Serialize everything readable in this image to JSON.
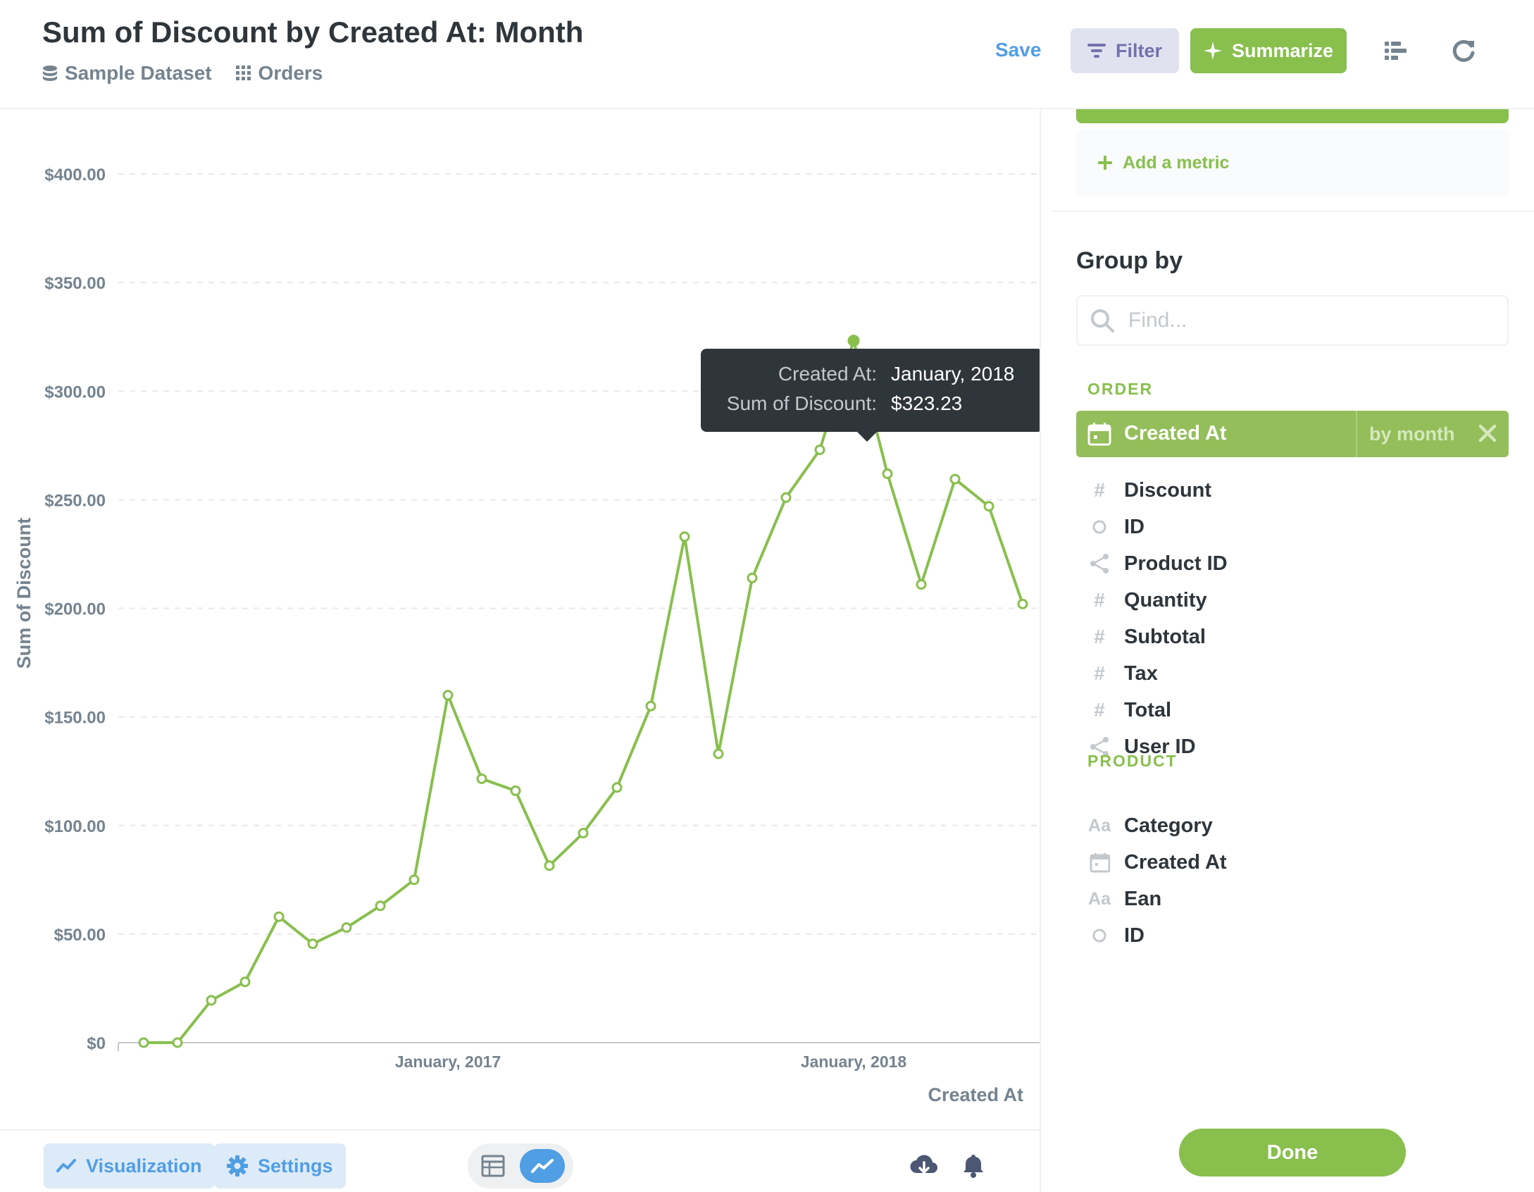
{
  "header": {
    "title": "Sum of Discount by Created At: Month",
    "database": "Sample Dataset",
    "table": "Orders",
    "save_label": "Save",
    "filter_label": "Filter",
    "summarize_label": "Summarize"
  },
  "tooltip": {
    "key1": "Created At:",
    "val1": "January, 2018",
    "key2": "Sum of Discount:",
    "val2": "$323.23"
  },
  "chart_data": {
    "type": "line",
    "title": "Sum of Discount by Created At: Month",
    "xlabel": "Created At",
    "ylabel": "Sum of Discount",
    "ylim": [
      0,
      400
    ],
    "y_ticks": [
      0,
      50,
      100,
      150,
      200,
      250,
      300,
      350,
      400
    ],
    "y_tick_labels": [
      "$0",
      "$50.00",
      "$100.00",
      "$150.00",
      "$200.00",
      "$250.00",
      "$300.00",
      "$350.00",
      "$400.00"
    ],
    "x_ticks": [
      {
        "index": 9,
        "label": "January, 2017"
      },
      {
        "index": 21,
        "label": "January, 2018"
      }
    ],
    "x_range": [
      -0.75,
      26.5
    ],
    "series": [
      {
        "name": "Sum of Discount",
        "color": "#88bf4d",
        "highlight_index": 21,
        "values": [
          0,
          0,
          19.5,
          28,
          58,
          45.5,
          53,
          63,
          75,
          160,
          121.5,
          116,
          81.5,
          96.5,
          117.5,
          155,
          233,
          133,
          214,
          251,
          273,
          323.23,
          262,
          211,
          259.5,
          247,
          202
        ]
      }
    ]
  },
  "footer": {
    "visualization_label": "Visualization",
    "settings_label": "Settings"
  },
  "sidebar": {
    "add_metric_label": "Add a metric",
    "group_by_title": "Group by",
    "find_placeholder": "Find...",
    "sections": [
      {
        "label": "ORDER"
      },
      {
        "label": "PRODUCT"
      }
    ],
    "selected": {
      "label": "Created At",
      "bucket": "by month"
    },
    "order_fields": [
      {
        "label": "Discount",
        "icon": "number-icon"
      },
      {
        "label": "ID",
        "icon": "id-icon"
      },
      {
        "label": "Product ID",
        "icon": "connections-icon"
      },
      {
        "label": "Quantity",
        "icon": "number-icon"
      },
      {
        "label": "Subtotal",
        "icon": "number-icon"
      },
      {
        "label": "Tax",
        "icon": "number-icon"
      },
      {
        "label": "Total",
        "icon": "number-icon"
      },
      {
        "label": "User ID",
        "icon": "connections-icon"
      }
    ],
    "product_fields": [
      {
        "label": "Category",
        "icon": "string-icon"
      },
      {
        "label": "Created At",
        "icon": "calendar-icon"
      },
      {
        "label": "Ean",
        "icon": "string-icon"
      },
      {
        "label": "ID",
        "icon": "id-icon"
      }
    ],
    "done_label": "Done"
  },
  "colors": {
    "accent_green": "#88bf4d",
    "brand_blue": "#509ee3",
    "filter_purple": "#7172ad",
    "text_dark": "#2e353b",
    "text_muted": "#74838f"
  }
}
